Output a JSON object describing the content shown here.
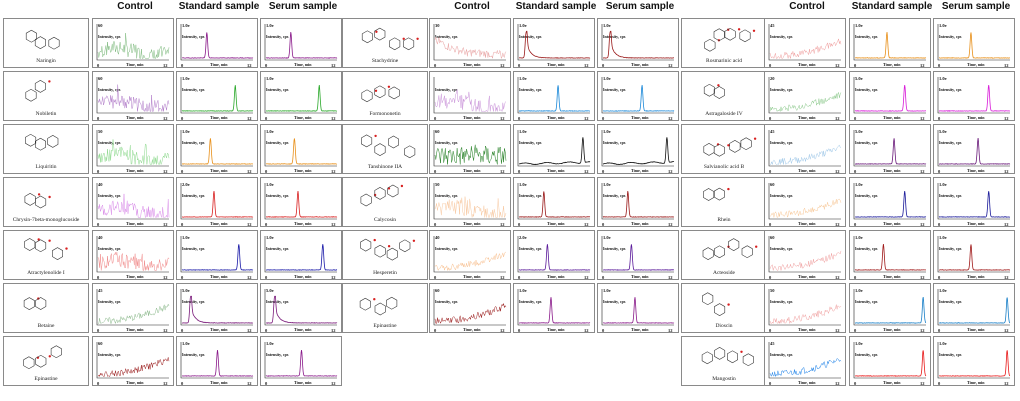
{
  "headers": {
    "control": "Control",
    "standard": "Standard sample",
    "serum": "Serum sample"
  },
  "axis_text": {
    "intensity": "Intensity, cps",
    "time": "Time, min",
    "x_start": "0",
    "x_end": "12"
  },
  "compounds": [
    {
      "name": "Naringin",
      "column": 0,
      "row": 0,
      "ctrl_max": "60",
      "std_max": "1.0e",
      "ser_max": "1.0e",
      "ctrl_color": "#7ab87a",
      "peak_color": "#8a1a8a",
      "ctrl_shape": "noise",
      "std_peak": 0.35,
      "ser_peak": 0.35
    },
    {
      "name": "Nobiletin",
      "column": 0,
      "row": 1,
      "ctrl_max": "60",
      "std_max": "1.0e",
      "ser_max": "1.0e",
      "ctrl_color": "#b07ac8",
      "peak_color": "#2aa82a",
      "ctrl_shape": "noise",
      "std_peak": 0.75,
      "ser_peak": 0.75
    },
    {
      "name": "Liquiritin",
      "column": 0,
      "row": 2,
      "ctrl_max": "50",
      "std_max": "1.0e",
      "ser_max": "1.0e",
      "ctrl_color": "#8ad88a",
      "peak_color": "#e8901a",
      "ctrl_shape": "noise",
      "std_peak": 0.4,
      "ser_peak": 0.4
    },
    {
      "name": "Chrysin-7beta-monoglucoside",
      "column": 0,
      "row": 3,
      "ctrl_max": "40",
      "std_max": "2.0e",
      "ser_max": "1.0e",
      "ctrl_color": "#d888e8",
      "peak_color": "#d82020",
      "ctrl_shape": "noise",
      "std_peak": 0.45,
      "ser_peak": 0.45
    },
    {
      "name": "Atractylenolide I",
      "column": 0,
      "row": 4,
      "ctrl_max": "40",
      "std_max": "1.0e",
      "ser_max": "1.0e",
      "ctrl_color": "#f08888",
      "peak_color": "#1a1aa8",
      "ctrl_shape": "noise",
      "std_peak": 0.8,
      "ser_peak": 0.8
    },
    {
      "name": "Betaine",
      "column": 0,
      "row": 5,
      "ctrl_max": "45",
      "std_max": "5.0e",
      "ser_max": "5.0e",
      "ctrl_color": "#8ab88a",
      "peak_color": "#7a1a7a",
      "ctrl_shape": "rise",
      "std_peak": 0.12,
      "ser_peak": 0.12
    },
    {
      "name": "Epinastine",
      "column": 0,
      "row": 6,
      "ctrl_max": "60",
      "std_max": "1.0e",
      "ser_max": "1.0e",
      "ctrl_color": "#9a1a1a",
      "peak_color": "#8a1a8a",
      "ctrl_shape": "rise",
      "std_peak": 0.5,
      "ser_peak": 0.5
    },
    {
      "name": "Stachydrine",
      "column": 1,
      "row": 0,
      "ctrl_max": "30",
      "std_max": "1.0e",
      "ser_max": "1.0e",
      "ctrl_color": "#e8a0a0",
      "peak_color": "#9a1a1a",
      "ctrl_shape": "decay",
      "std_peak": 0.1,
      "ser_peak": 0.1
    },
    {
      "name": "Formononetin",
      "column": 1,
      "row": 1,
      "ctrl_max": "",
      "std_max": "1.0e",
      "ser_max": "1.0e",
      "ctrl_color": "#c890d8",
      "peak_color": "#1a88d8",
      "ctrl_shape": "noise",
      "std_peak": 0.55,
      "ser_peak": 0.55
    },
    {
      "name": "Tanshinone IIA",
      "column": 1,
      "row": 2,
      "ctrl_max": "60",
      "std_max": "1.0e",
      "ser_max": "1.0e",
      "ctrl_color": "#1a7a1a",
      "peak_color": "#111111",
      "ctrl_shape": "dense",
      "std_peak": 0.9,
      "ser_peak": 0.9
    },
    {
      "name": "Calycosin",
      "column": 1,
      "row": 3,
      "ctrl_max": "50",
      "std_max": "1.0e",
      "ser_max": "1.0e",
      "ctrl_color": "#f8c8a0",
      "peak_color": "#9a1a1a",
      "ctrl_shape": "noise",
      "std_peak": 0.35,
      "ser_peak": 0.35
    },
    {
      "name": "Hesperetin",
      "column": 1,
      "row": 4,
      "ctrl_max": "40",
      "std_max": "2.0e",
      "ser_max": "1.0e",
      "ctrl_color": "#f8c090",
      "peak_color": "#5a1a9a",
      "ctrl_shape": "rise",
      "std_peak": 0.4,
      "ser_peak": 0.4
    },
    {
      "name": "Epinastine",
      "column": 1,
      "row": 5,
      "ctrl_max": "60",
      "std_max": "1.0e",
      "ser_max": "1.0e",
      "ctrl_color": "#9a1a1a",
      "peak_color": "#8a1a8a",
      "ctrl_shape": "rise",
      "std_peak": 0.45,
      "ser_peak": 0.45
    },
    {
      "name": "Rosmarinic acid",
      "column": 2,
      "row": 0,
      "ctrl_max": "45",
      "std_max": "1.0e",
      "ser_max": "1.0e",
      "ctrl_color": "#f0a0a0",
      "peak_color": "#e8901a",
      "ctrl_shape": "rise",
      "std_peak": 0.45,
      "ser_peak": 0.45
    },
    {
      "name": "Astragaloside IV",
      "column": 2,
      "row": 1,
      "ctrl_max": "20",
      "std_max": "5.0e",
      "ser_max": "1.0e",
      "ctrl_color": "#8ac88a",
      "peak_color": "#d81ad8",
      "ctrl_shape": "rise",
      "std_peak": 0.7,
      "ser_peak": 0.7
    },
    {
      "name": "Salvianolic acid B",
      "column": 2,
      "row": 2,
      "ctrl_max": "45",
      "std_max": "5.0e",
      "ser_max": "5.0e",
      "ctrl_color": "#a0c8e8",
      "peak_color": "#6a1a7a",
      "ctrl_shape": "rise",
      "std_peak": 0.55,
      "ser_peak": 0.55
    },
    {
      "name": "Rhein",
      "column": 2,
      "row": 3,
      "ctrl_max": "60",
      "std_max": "1.0e",
      "ser_max": "1.0e",
      "ctrl_color": "#f8c898",
      "peak_color": "#1a1a9a",
      "ctrl_shape": "rise",
      "std_peak": 0.7,
      "ser_peak": 0.7
    },
    {
      "name": "Acteoside",
      "column": 2,
      "row": 4,
      "ctrl_max": "60",
      "std_max": "1.0e",
      "ser_max": "1.0e",
      "ctrl_color": "#f0a0a0",
      "peak_color": "#a01a1a",
      "ctrl_shape": "rise",
      "std_peak": 0.4,
      "ser_peak": 0.45
    },
    {
      "name": "Dioscin",
      "column": 2,
      "row": 5,
      "ctrl_max": "50",
      "std_max": "1.0e",
      "ser_max": "1.0e",
      "ctrl_color": "#f0a0a0",
      "peak_color": "#1a80c8",
      "ctrl_shape": "rise",
      "std_peak": 0.96,
      "ser_peak": 0.96
    },
    {
      "name": "Mangostin",
      "column": 2,
      "row": 6,
      "ctrl_max": "45",
      "std_max": "1.0e",
      "ser_max": "1.0e",
      "ctrl_color": "#1a80e8",
      "peak_color": "#e81a1a",
      "ctrl_shape": "rise",
      "std_peak": 0.96,
      "ser_peak": 0.96
    }
  ],
  "chart_data": {
    "type": "line",
    "description_of_panels": "Grid of extracted ion chromatograms for each compound: Control, Standard sample, Serum sample",
    "xlim": [
      0,
      12
    ],
    "xlabel": "Time, min",
    "ylabel": "Intensity, cps",
    "series": [
      "Control",
      "Standard sample",
      "Serum sample"
    ]
  }
}
